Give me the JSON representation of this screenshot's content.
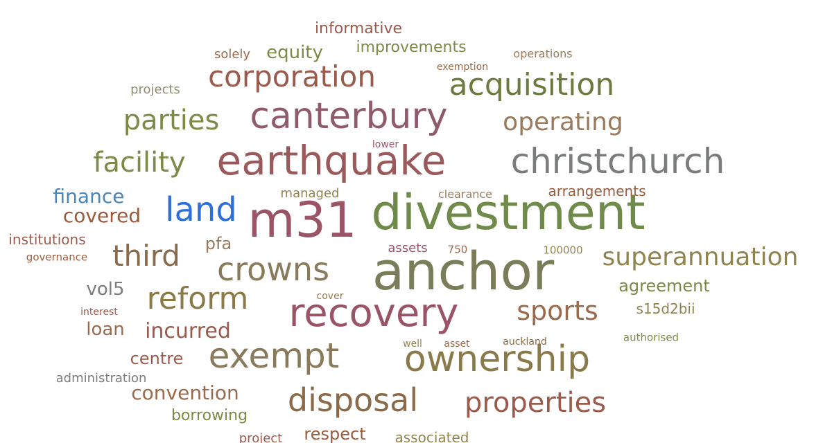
{
  "palette": {
    "red_brown": "#9a5a4c",
    "olive": "#7c8a48",
    "olive_dark": "#6b7a3f",
    "mauve": "#9b5466",
    "grey": "#7a7d7c",
    "blue": "#2f6fd6",
    "steel_blue": "#4b86b8",
    "tan": "#8a7a5c",
    "khaki": "#8f8450"
  },
  "words": [
    {
      "id": "anchor",
      "text": "anchor",
      "color": "#7a7d5a"
    },
    {
      "id": "divestment",
      "text": "divestment",
      "color": "#6f8a4a"
    },
    {
      "id": "m31",
      "text": "m31",
      "color": "#9b5466"
    },
    {
      "id": "earthquake",
      "text": "earthquake",
      "color": "#9a5a5c"
    },
    {
      "id": "recovery",
      "text": "recovery",
      "color": "#9b5466"
    },
    {
      "id": "canterbury",
      "text": "canterbury",
      "color": "#8e5a6c"
    },
    {
      "id": "christchurch",
      "text": "christchurch",
      "color": "#7a7d7c"
    },
    {
      "id": "ownership",
      "text": "ownership",
      "color": "#8a7a4a"
    },
    {
      "id": "exempt",
      "text": "exempt",
      "color": "#8a7a5c"
    },
    {
      "id": "corporation",
      "text": "corporation",
      "color": "#9a5a4c"
    },
    {
      "id": "acquisition",
      "text": "acquisition",
      "color": "#6b7a3f"
    },
    {
      "id": "crowns",
      "text": "crowns",
      "color": "#8a7a5c"
    },
    {
      "id": "disposal",
      "text": "disposal",
      "color": "#8a6a48"
    },
    {
      "id": "land",
      "text": "land",
      "color": "#2f6fd6"
    },
    {
      "id": "reform",
      "text": "reform",
      "color": "#8a7a48"
    },
    {
      "id": "properties",
      "text": "properties",
      "color": "#9a5a4c"
    },
    {
      "id": "parties",
      "text": "parties",
      "color": "#7c8a48"
    },
    {
      "id": "facility",
      "text": "facility",
      "color": "#7c8a48"
    },
    {
      "id": "third",
      "text": "third",
      "color": "#8a6a4c"
    },
    {
      "id": "sports",
      "text": "sports",
      "color": "#9a6a4c"
    },
    {
      "id": "superannuation",
      "text": "superannuation",
      "color": "#8f8450"
    },
    {
      "id": "operating",
      "text": "operating",
      "color": "#9a7a5c"
    },
    {
      "id": "convention",
      "text": "convention",
      "color": "#9a6a4c"
    },
    {
      "id": "incurred",
      "text": "incurred",
      "color": "#9a5a4c"
    },
    {
      "id": "finance",
      "text": "finance",
      "color": "#4b86b8"
    },
    {
      "id": "covered",
      "text": "covered",
      "color": "#9a5a3c"
    },
    {
      "id": "agreement",
      "text": "agreement",
      "color": "#7c8a48"
    },
    {
      "id": "equity",
      "text": "equity",
      "color": "#7c8a48"
    },
    {
      "id": "improvements",
      "text": "improvements",
      "color": "#7c8a48"
    },
    {
      "id": "informative",
      "text": "informative",
      "color": "#9a5a4c"
    },
    {
      "id": "loan",
      "text": "loan",
      "color": "#9a6a4c"
    },
    {
      "id": "centre",
      "text": "centre",
      "color": "#9a5a4c"
    },
    {
      "id": "vol5",
      "text": "vol5",
      "color": "#7a7d7c"
    },
    {
      "id": "respect",
      "text": "respect",
      "color": "#9a5a3c"
    },
    {
      "id": "borrowing",
      "text": "borrowing",
      "color": "#7c8a48"
    },
    {
      "id": "pfa",
      "text": "pfa",
      "color": "#9a7a5c"
    },
    {
      "id": "s15d2bii",
      "text": "s15d2bii",
      "color": "#8f8450"
    },
    {
      "id": "arrangements",
      "text": "arrangements",
      "color": "#9a5a3c"
    },
    {
      "id": "institutions",
      "text": "institutions",
      "color": "#9a5a4c"
    },
    {
      "id": "managed",
      "text": "managed",
      "color": "#8f8450"
    },
    {
      "id": "administration",
      "text": "administration",
      "color": "#7a7d7c"
    },
    {
      "id": "associated",
      "text": "associated",
      "color": "#8f8450"
    },
    {
      "id": "projects",
      "text": "projects",
      "color": "#8f8f70"
    },
    {
      "id": "solely",
      "text": "solely",
      "color": "#9a6a4c"
    },
    {
      "id": "assets",
      "text": "assets",
      "color": "#9b5466"
    },
    {
      "id": "clearance",
      "text": "clearance",
      "color": "#9a7a5c"
    },
    {
      "id": "operations",
      "text": "operations",
      "color": "#9a7a5c"
    },
    {
      "id": "project",
      "text": "project",
      "color": "#9a5a4c"
    },
    {
      "id": "governance",
      "text": "governance",
      "color": "#9a5a3c"
    },
    {
      "id": "100000",
      "text": "100000",
      "color": "#8f8450"
    },
    {
      "id": "authorised",
      "text": "authorised",
      "color": "#7c8a48"
    },
    {
      "id": "750",
      "text": "750",
      "color": "#9a6a4c"
    },
    {
      "id": "cover",
      "text": "cover",
      "color": "#9a7a48"
    },
    {
      "id": "interest",
      "text": "interest",
      "color": "#9a5a4c"
    },
    {
      "id": "exemption",
      "text": "exemption",
      "color": "#9a6a4c"
    },
    {
      "id": "lower",
      "text": "lower",
      "color": "#9b5466"
    },
    {
      "id": "well",
      "text": "well",
      "color": "#8f8450"
    },
    {
      "id": "asset",
      "text": "asset",
      "color": "#9a6a4c"
    },
    {
      "id": "auckland",
      "text": "auckland",
      "color": "#8a6a48"
    }
  ]
}
